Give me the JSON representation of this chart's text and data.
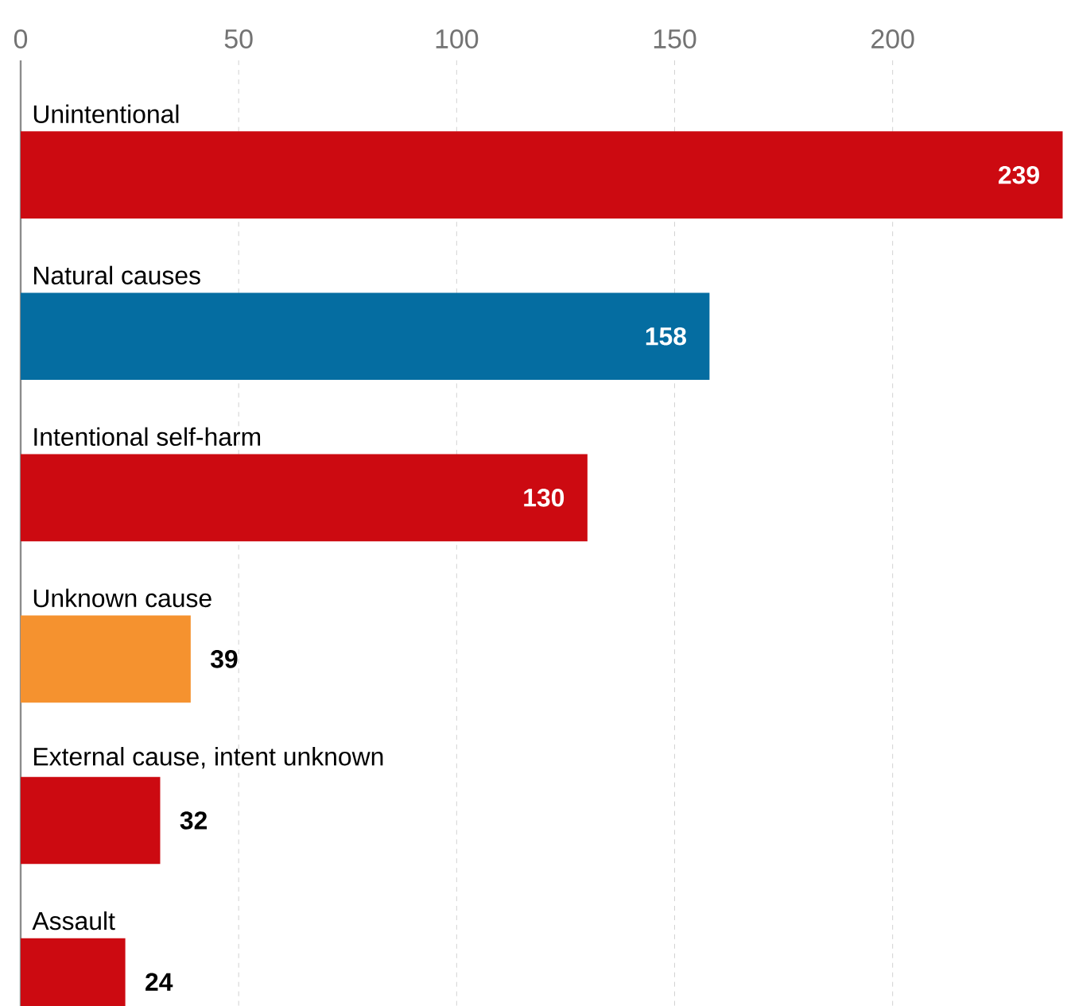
{
  "chart_data": {
    "type": "bar",
    "orientation": "horizontal",
    "categories": [
      "Unintentional",
      "Natural causes",
      "Intentional self-harm",
      "Unknown cause",
      "External cause, intent unknown",
      "Assault"
    ],
    "values": [
      239,
      158,
      130,
      39,
      32,
      24
    ],
    "colors": [
      "#cc0a11",
      "#056da1",
      "#cc0a11",
      "#f5922f",
      "#cc0a11",
      "#cc0a11"
    ],
    "xlim": [
      0,
      240
    ],
    "xticks": [
      0,
      50,
      100,
      150,
      200
    ],
    "grid": "x",
    "data_labels": true
  }
}
